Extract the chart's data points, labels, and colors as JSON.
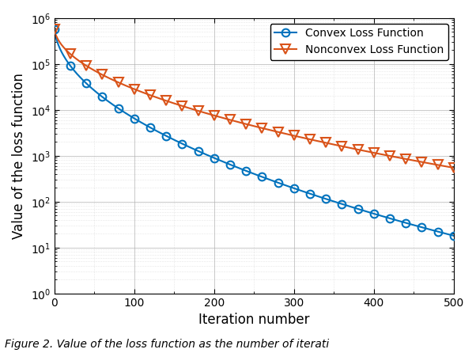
{
  "title": "",
  "xlabel": "Iteration number",
  "ylabel": "Value of the loss function",
  "xlim": [
    0,
    500
  ],
  "ylim_log": [
    1.0,
    1000000.0
  ],
  "convex_color": "#0072BD",
  "nonconvex_color": "#D95319",
  "convex_label": "Convex Loss Function",
  "nonconvex_label": "Nonconvex Loss Function",
  "background_color": "#ffffff",
  "grid_color": "#b0b0b0",
  "figsize": [
    6.02,
    4.46
  ],
  "dpi": 100,
  "caption": "Figure 2. Value of the loss function as the number of iterati"
}
